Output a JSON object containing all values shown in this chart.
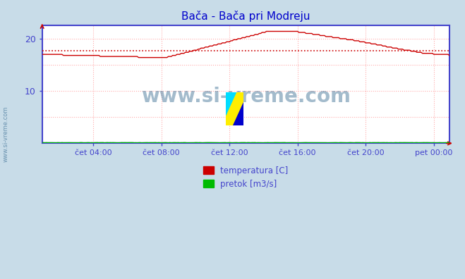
{
  "title": "Bača - Bača pri Modreju",
  "background_color": "#c8dce8",
  "plot_bg_color": "#ffffff",
  "ylim": [
    0,
    22.5
  ],
  "xtick_labels": [
    "čet 04:00",
    "čet 08:00",
    "čet 12:00",
    "čet 16:00",
    "čet 20:00",
    "pet 00:00"
  ],
  "n_points": 288,
  "avg_line_value": 17.7,
  "temp_color": "#cc0000",
  "pretok_color": "#00bb00",
  "visina_color": "#4444cc",
  "avg_color": "#cc0000",
  "grid_color": "#ffaaaa",
  "axis_color": "#4444cc",
  "watermark_text": "www.si-vreme.com",
  "watermark_color": "#1a5580",
  "watermark_alpha": 0.4,
  "title_color": "#0000cc",
  "tick_label_color": "#4444cc",
  "side_label": "www.si-vreme.com",
  "legend_temp": "temperatura [C]",
  "legend_pretok": "pretok [m3/s]"
}
